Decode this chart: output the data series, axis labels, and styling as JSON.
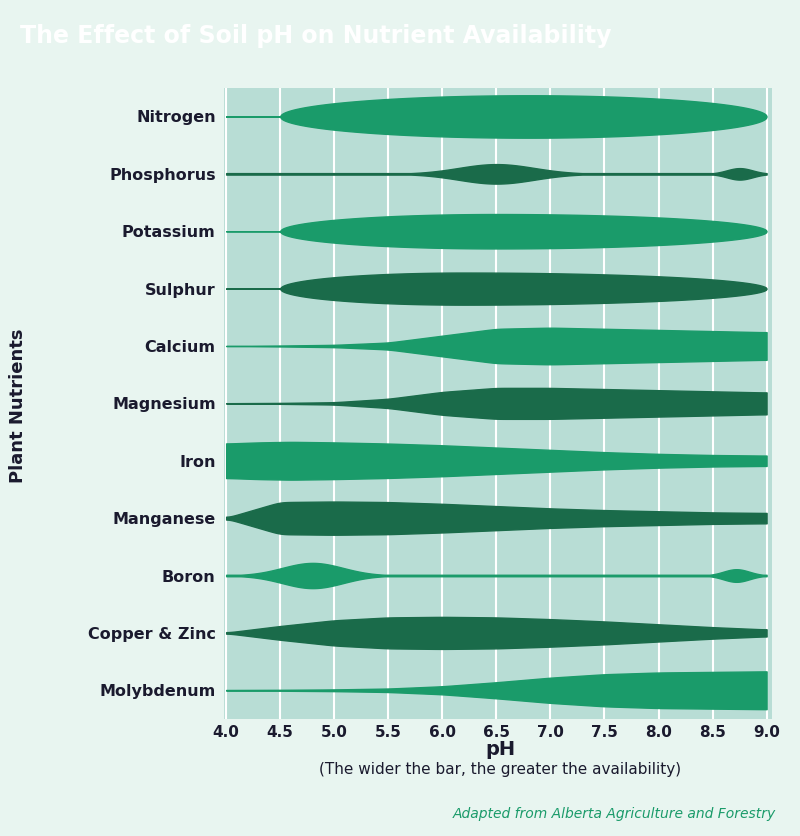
{
  "title": "The Effect of Soil pH on Nutrient Availability",
  "xlabel": "pH",
  "xlabel2": "(The wider the bar, the greater the availability)",
  "ylabel": "Plant Nutrients",
  "attribution": "Adapted from Alberta Agriculture and Forestry",
  "bg_color": "#e8f5f0",
  "plot_bg": "#b8ddd5",
  "title_bg": "#1a3a4a",
  "title_color": "#ffffff",
  "dark_green": "#1a6b4a",
  "mid_green": "#1a9b6a",
  "nutrients": [
    "Nitrogen",
    "Phosphorus",
    "Potassium",
    "Sulphur",
    "Calcium",
    "Magnesium",
    "Iron",
    "Manganese",
    "Boron",
    "Copper & Zinc",
    "Molybdenum"
  ],
  "xmin": 4.0,
  "xmax": 9.0
}
